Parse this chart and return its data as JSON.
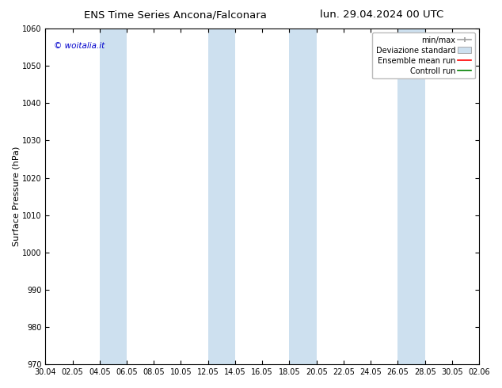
{
  "title_left": "ENS Time Series Ancona/Falconara",
  "title_right": "lun. 29.04.2024 00 UTC",
  "ylabel": "Surface Pressure (hPa)",
  "ylim": [
    970,
    1060
  ],
  "yticks": [
    970,
    980,
    990,
    1000,
    1010,
    1020,
    1030,
    1040,
    1050,
    1060
  ],
  "xtick_labels": [
    "30.04",
    "02.05",
    "04.05",
    "06.05",
    "08.05",
    "10.05",
    "12.05",
    "14.05",
    "16.05",
    "18.05",
    "20.05",
    "22.05",
    "24.05",
    "26.05",
    "28.05",
    "30.05",
    "02.06"
  ],
  "copyright_text": "© woitalia.it",
  "copyright_color": "#0000cc",
  "band_color": "#cde0ef",
  "legend_minmax_color": "#a0a0a0",
  "legend_std_color": "#cde0ef",
  "legend_std_edge": "#a0a0a0",
  "legend_mean_color": "#ff0000",
  "legend_control_color": "#008000",
  "bg_color": "#ffffff",
  "plot_bg_color": "#ffffff",
  "title_fontsize": 9.5,
  "tick_fontsize": 7,
  "ylabel_fontsize": 8,
  "legend_fontsize": 7
}
